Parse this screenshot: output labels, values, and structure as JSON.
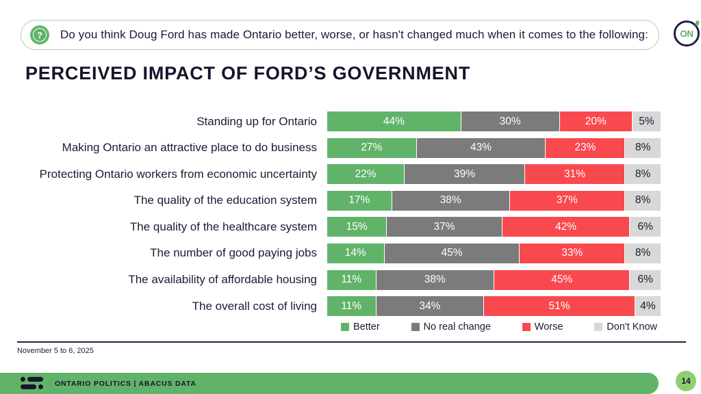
{
  "banner": {
    "question": "Do you think Doug Ford has made Ontario better, worse, or hasn't changed much when it comes to the following:",
    "question_icon": "question-mark-in-speech-bubble-icon"
  },
  "logo": {
    "text": "ON"
  },
  "title": "PERCEIVED IMPACT OF FORD’S GOVERNMENT",
  "chart_data": {
    "type": "bar",
    "orientation": "horizontal",
    "stacked": true,
    "value_suffix": "%",
    "legend_position": "bottom",
    "categories": [
      "Standing up for Ontario",
      "Making Ontario an attractive place to do business",
      "Protecting Ontario workers from economic uncertainty",
      "The quality of the education system",
      "The quality of the healthcare system",
      "The number of good paying jobs",
      "The availability of affordable housing",
      "The overall cost of living"
    ],
    "series": [
      {
        "name": "Better",
        "color": "#61b36a",
        "label_color": "#ffffff",
        "values": [
          44,
          27,
          22,
          17,
          15,
          14,
          11,
          11
        ]
      },
      {
        "name": "No real change",
        "color": "#7b7b7b",
        "label_color": "#ffffff",
        "values": [
          30,
          43,
          39,
          38,
          37,
          45,
          38,
          34
        ]
      },
      {
        "name": "Worse",
        "color": "#f8494f",
        "label_color": "#ffffff",
        "values": [
          20,
          23,
          31,
          37,
          42,
          33,
          45,
          51
        ]
      },
      {
        "name": "Don't Know",
        "color": "#d8d8d8",
        "label_color": "#1a1a2e",
        "values": [
          5,
          8,
          8,
          8,
          6,
          8,
          6,
          4
        ]
      }
    ]
  },
  "footnote": "November 5 to 6, 2025",
  "footer": {
    "label": "ONTARIO POLITICS | ABACUS DATA",
    "page": "14"
  },
  "colors": {
    "accent_green": "#61b36a",
    "badge_green": "#8ed06f",
    "dark_navy": "#1c1a33",
    "banner_border": "#a9d4a4",
    "worse_red": "#f8494f",
    "no_change_gray": "#7b7b7b",
    "dont_know_gray": "#d8d8d8"
  }
}
